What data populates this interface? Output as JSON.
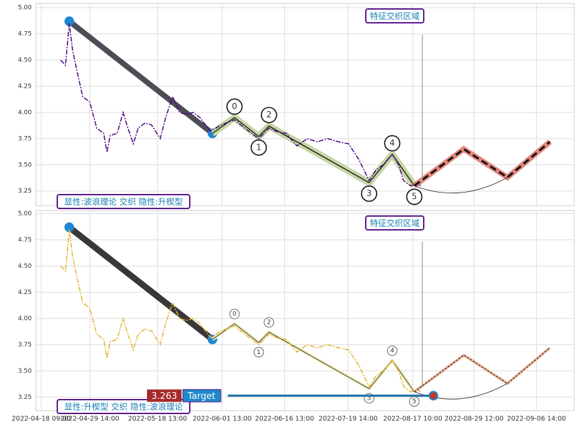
{
  "chart_data": [
    {
      "type": "line",
      "x": [
        4.6,
        5.5,
        6.2,
        6.8,
        7.4,
        8.7,
        10,
        11.3,
        12.6,
        13.2,
        13.8,
        15.1,
        16.2,
        17.1,
        18.1,
        19,
        20.3,
        21.5,
        23.1,
        24.1,
        25.4,
        26.7,
        27.9,
        29.2,
        30.5,
        32.4,
        34.4,
        36.9,
        38.8,
        41.4,
        43.3,
        44.6,
        46.5,
        48.5,
        50.4,
        52.3,
        54.2,
        56.2,
        58.1,
        60,
        61.9,
        63.2,
        64.5,
        66.2,
        67.4,
        68.3,
        69.6,
        70.9,
        71.5
      ],
      "series": [
        {
          "color": "#4b0082",
          "values": [
            4.5,
            4.45,
            4.85,
            4.6,
            4.45,
            4.15,
            4.1,
            3.85,
            3.8,
            3.62,
            3.78,
            3.8,
            4.0,
            3.85,
            3.7,
            3.85,
            3.9,
            3.88,
            3.75,
            3.95,
            4.15,
            4.0,
            3.98,
            4.0,
            3.95,
            3.82,
            3.88,
            3.93,
            3.85,
            3.75,
            3.85,
            3.82,
            3.8,
            3.68,
            3.75,
            3.72,
            3.75,
            3.72,
            3.7,
            3.55,
            3.35,
            3.45,
            3.5,
            3.6,
            3.5,
            3.35,
            3.3,
            3.32,
            3.3
          ]
        }
      ],
      "trend": {
        "color": "#3a3a44",
        "x": [
          6.2,
          32.8
        ],
        "values": [
          4.87,
          3.8
        ]
      },
      "wave": {
        "color": "#c5d6a6",
        "x": [
          32.8,
          36.9,
          41.4,
          43.3,
          61.9,
          66.2,
          70.3
        ],
        "values": [
          3.8,
          3.95,
          3.77,
          3.87,
          3.33,
          3.6,
          3.3
        ],
        "labels": [
          "0",
          "1",
          "2",
          "3",
          "4",
          "5"
        ]
      },
      "projection": {
        "color": "#e07a70",
        "x": [
          70.3,
          79.5,
          87.6,
          95.5
        ],
        "values": [
          3.3,
          3.65,
          3.38,
          3.72
        ]
      },
      "annotations": [
        "特征交织区域",
        "显性:波浪理论 交织 隐性:升楔型"
      ],
      "xlim": [
        0,
        100
      ],
      "ylim": [
        3.11,
        5.04
      ],
      "yticks": [
        {
          "value": 3.25,
          "label": "3.25"
        },
        {
          "value": 3.5,
          "label": "3.50"
        },
        {
          "value": 3.75,
          "label": "3.75"
        },
        {
          "value": 4,
          "label": "4.00"
        },
        {
          "value": 4.25,
          "label": "4.25"
        },
        {
          "value": 4.5,
          "label": "4.50"
        },
        {
          "value": 4.75,
          "label": "4.75"
        },
        {
          "value": 5,
          "label": "5.00"
        }
      ],
      "grid": true
    },
    {
      "type": "line",
      "x": [
        4.6,
        5.5,
        6.2,
        6.8,
        7.4,
        8.7,
        10,
        11.3,
        12.6,
        13.2,
        13.8,
        15.1,
        16.2,
        17.1,
        18.1,
        19,
        20.3,
        21.5,
        23.1,
        24.1,
        25.4,
        26.7,
        27.9,
        29.2,
        30.5,
        32.4,
        34.4,
        36.9,
        38.8,
        41.4,
        43.3,
        44.6,
        46.5,
        48.5,
        50.4,
        52.3,
        54.2,
        56.2,
        58.1,
        60,
        61.9,
        63.2,
        64.5,
        66.2,
        67.4,
        68.3,
        69.6,
        70.9,
        71.5
      ],
      "series": [
        {
          "color": "#e5b030",
          "values": [
            4.5,
            4.45,
            4.85,
            4.6,
            4.45,
            4.15,
            4.1,
            3.85,
            3.8,
            3.62,
            3.78,
            3.8,
            4.0,
            3.85,
            3.7,
            3.85,
            3.9,
            3.88,
            3.75,
            3.95,
            4.15,
            4.0,
            3.98,
            4.0,
            3.95,
            3.82,
            3.88,
            3.93,
            3.85,
            3.75,
            3.85,
            3.82,
            3.8,
            3.68,
            3.75,
            3.72,
            3.75,
            3.72,
            3.7,
            3.55,
            3.35,
            3.45,
            3.5,
            3.6,
            3.5,
            3.35,
            3.3,
            3.32,
            3.3
          ]
        }
      ],
      "trend": {
        "color": "#222222",
        "x": [
          6.2,
          32.8
        ],
        "values": [
          4.87,
          3.8
        ]
      },
      "wave": {
        "color": "#f3efc0",
        "x": [
          32.8,
          36.9,
          41.4,
          43.3,
          61.9,
          66.2,
          70.3
        ],
        "values": [
          3.8,
          3.95,
          3.77,
          3.87,
          3.33,
          3.6,
          3.3
        ],
        "labels": [
          "0",
          "1",
          "2",
          "3",
          "4",
          "5"
        ]
      },
      "projection": {
        "color": "#f0b090",
        "x": [
          70.3,
          79.5,
          87.6,
          95.5
        ],
        "values": [
          3.3,
          3.65,
          3.38,
          3.72
        ]
      },
      "annotations": [
        "特征交织区域",
        "显性:升楔型 交织 隐性:波浪理论"
      ],
      "target": 3.263,
      "target_label": "Target",
      "xlim": [
        0,
        100
      ],
      "ylim": [
        3.12,
        5.03
      ],
      "yticks": [
        {
          "value": 3.25,
          "label": "3.25"
        },
        {
          "value": 3.5,
          "label": "3.50"
        },
        {
          "value": 3.75,
          "label": "3.75"
        },
        {
          "value": 4,
          "label": "4.00"
        },
        {
          "value": 4.25,
          "label": "4.25"
        },
        {
          "value": 4.5,
          "label": "4.50"
        },
        {
          "value": 4.75,
          "label": "4.75"
        },
        {
          "value": 5,
          "label": "5.00"
        }
      ],
      "xticks": [
        {
          "value": 1,
          "label": "2022-04-18 09:00"
        },
        {
          "value": 10,
          "label": "2022-04-29 14:00"
        },
        {
          "value": 22.6,
          "label": "2022-05-18 13:00"
        },
        {
          "value": 34.6,
          "label": "2022-06-01 13:00"
        },
        {
          "value": 46.2,
          "label": "2022-06-16 13:00"
        },
        {
          "value": 58,
          "label": "2022-07-19 14:00"
        },
        {
          "value": 70,
          "label": "2022-08-17 10:00"
        },
        {
          "value": 81.4,
          "label": "2022-08-29 12:00"
        },
        {
          "value": 93,
          "label": "2022-09-06 14:00"
        }
      ],
      "grid": true
    }
  ]
}
